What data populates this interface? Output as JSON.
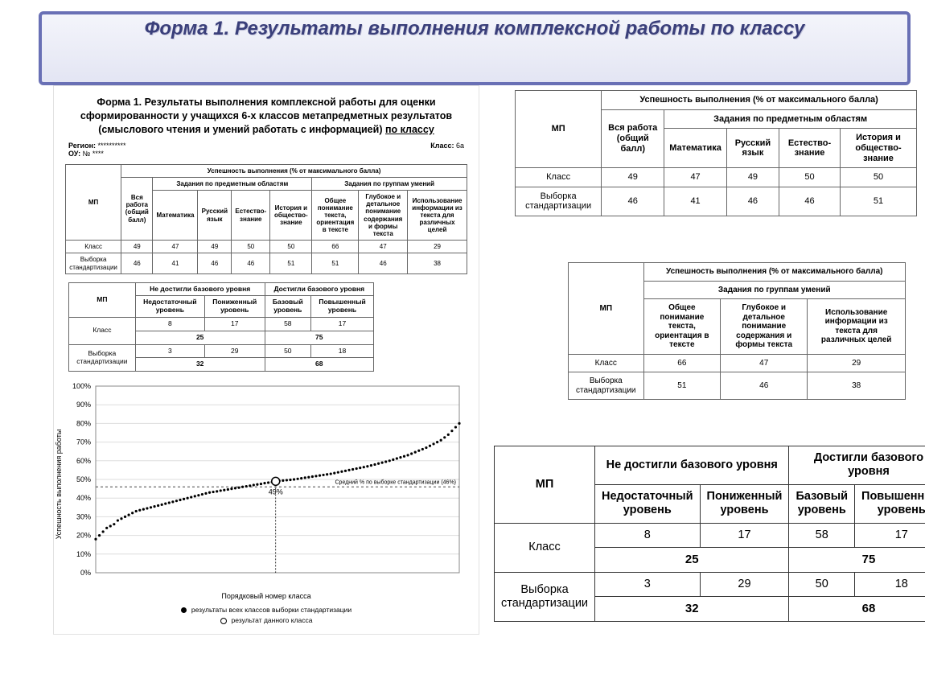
{
  "main_title": "Форма 1. Результаты выполнения комплексной работы по классу",
  "left": {
    "subtitle_pre": "Форма 1. Результаты выполнения комплексной работы для оценки сформированности у учащихся 6-х классов метапредметных результатов (смыслового чтения и умений работать с информацией) ",
    "subtitle_underlined": "по классу",
    "region_label": "Регион:",
    "region_value": "**********",
    "ou_label": "ОУ:",
    "ou_value": "№ ****",
    "class_label": "Класс:",
    "class_value": "6а",
    "main_table": {
      "head_success": "Успешность выполнения (% от максимального балла)",
      "head_subject": "Задания по предметным областям",
      "head_skill": "Задания по группам умений",
      "row_label": "МП",
      "col_all": "Вся работа (общий балл)",
      "cols_subject": [
        "Математика",
        "Русский язык",
        "Естество-знание",
        "История и общество-знание"
      ],
      "cols_skill": [
        "Общее понимание текста, ориентация в тексте",
        "Глубокое и детальное понимание содержания и формы текста",
        "Использование информации из текста для различных целей"
      ],
      "rows": [
        {
          "label": "Класс",
          "all": 49,
          "subj": [
            47,
            49,
            50,
            50
          ],
          "skill": [
            66,
            47,
            29
          ]
        },
        {
          "label": "Выборка стандартизации",
          "all": 46,
          "subj": [
            41,
            46,
            46,
            51
          ],
          "skill": [
            51,
            46,
            38
          ]
        }
      ]
    },
    "levels_table": {
      "head_mp": "МП",
      "head_not": "Не достигли базового уровня",
      "head_yes": "Достигли базового уровня",
      "cols": [
        "Недостаточный уровень",
        "Пониженный уровень",
        "Базовый уровень",
        "Повышенный уровень"
      ],
      "rows": [
        {
          "label": "Класс",
          "vals": [
            8,
            17,
            58,
            17
          ],
          "sum_not": 25,
          "sum_yes": 75
        },
        {
          "label": "Выборка стандартизации",
          "vals": [
            3,
            29,
            50,
            18
          ],
          "sum_not": 32,
          "sum_yes": 68
        }
      ]
    },
    "chart": {
      "ylabel": "Успешность выполнения работы",
      "xlabel": "Порядковый номер класса",
      "legend_all": "результаты всех классов выборки стандартизации",
      "legend_this": "результат данного класса",
      "yticks": [
        0,
        10,
        20,
        30,
        40,
        50,
        60,
        70,
        80,
        90,
        100
      ],
      "marker_value": 49,
      "marker_label": "49%",
      "avg_line_value": 46,
      "avg_line_label": "Средний % по выборке стандартизации (46%)",
      "curve_color": "#000000",
      "grid_color": "#dddddd",
      "avg_line_color": "#444444",
      "background": "#ffffff",
      "curve_y": [
        18,
        20,
        22,
        24,
        25,
        26,
        28,
        29,
        30,
        31,
        32,
        33,
        33.5,
        34,
        34.5,
        35,
        35.5,
        36,
        36.5,
        37,
        37.5,
        38,
        38.5,
        39,
        39.5,
        40,
        40.5,
        41,
        41.5,
        42,
        42.5,
        43,
        43.3,
        43.6,
        44,
        44.3,
        44.6,
        45,
        45.3,
        45.6,
        46,
        46.3,
        46.6,
        47,
        47.3,
        47.6,
        48,
        48.3,
        48.6,
        49,
        49.2,
        49.4,
        49.6,
        49.8,
        50,
        50.3,
        50.6,
        50.9,
        51.2,
        51.5,
        51.8,
        52.1,
        52.4,
        52.7,
        53,
        53.4,
        53.8,
        54.2,
        54.6,
        55,
        55.4,
        55.8,
        56.2,
        56.6,
        57,
        57.5,
        58,
        58.5,
        59,
        59.5,
        60,
        60.6,
        61.2,
        61.8,
        62.4,
        63,
        63.8,
        64.6,
        65.4,
        66.2,
        67,
        68,
        69,
        70,
        71,
        72.5,
        74,
        76,
        78,
        80
      ]
    }
  },
  "right1": {
    "head_success": "Успешность выполнения (% от максимального балла)",
    "head_subject": "Задания по предметным областям",
    "row_label": "МП",
    "col_all": "Вся работа (общий балл)",
    "cols": [
      "Математика",
      "Русский язык",
      "Естество-знание",
      "История и общество-знание"
    ],
    "rows": [
      {
        "label": "Класс",
        "all": 49,
        "vals": [
          47,
          49,
          50,
          50
        ]
      },
      {
        "label": "Выборка стандартизации",
        "all": 46,
        "vals": [
          41,
          46,
          46,
          51
        ]
      }
    ]
  },
  "right2": {
    "head_success": "Успешность выполнения (% от максимального балла)",
    "head_skill": "Задания по группам умений",
    "row_label": "МП",
    "cols": [
      "Общее понимание текста, ориентация в тексте",
      "Глубокое и детальное понимание содержания и формы текста",
      "Использование информации из текста для различных целей"
    ],
    "rows": [
      {
        "label": "Класс",
        "vals": [
          66,
          47,
          29
        ]
      },
      {
        "label": "Выборка стандартизации",
        "vals": [
          51,
          46,
          38
        ]
      }
    ]
  },
  "right3": {
    "head_mp": "МП",
    "head_not": "Не достигли базового уровня",
    "head_yes": "Достигли базового уровня",
    "cols": [
      "Недостаточный уровень",
      "Пониженный уровень",
      "Базовый уровень",
      "Повышенный уровень"
    ],
    "rows": [
      {
        "label": "Класс",
        "vals": [
          8,
          17,
          58,
          17
        ],
        "sum_not": 25,
        "sum_yes": 75
      },
      {
        "label": "Выборка стандартизации",
        "vals": [
          3,
          29,
          50,
          18
        ],
        "sum_not": 32,
        "sum_yes": 68
      }
    ]
  }
}
